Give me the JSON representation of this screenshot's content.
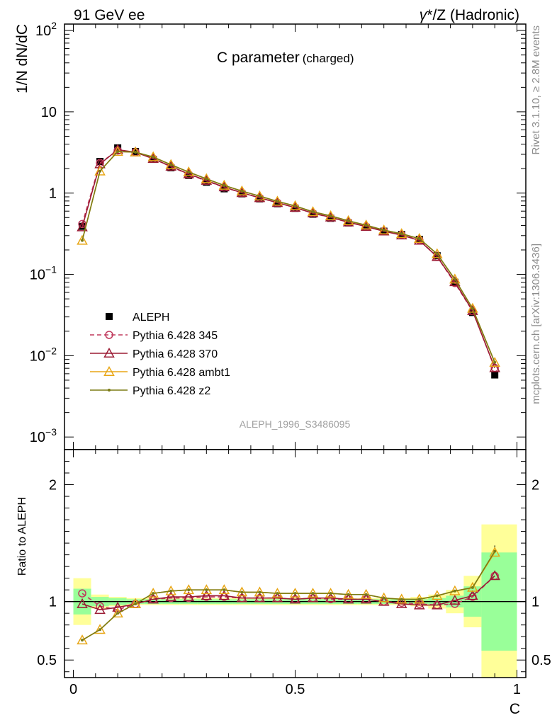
{
  "header": {
    "left": "91 GeV ee",
    "right_gamma": "γ",
    "right_rest": "*/Z (Hadronic)"
  },
  "side_labels": {
    "top": "Rivet 3.1.10, ≥ 2.8M events",
    "bottom": "mcplots.cern.ch [arXiv:1306.3436]"
  },
  "chart_data": {
    "type": "line",
    "title": "C parameter",
    "title_suffix": "(charged)",
    "analysis": "ALEPH_1996_S3486095",
    "xlabel": "C",
    "ylabel": "1/N dN/dC",
    "ratio_ylabel": "Ratio to ALEPH",
    "xlim": [
      -0.02,
      1.02
    ],
    "ylim": [
      0.0007,
      120
    ],
    "yscale": "log",
    "ratio_ylim": [
      0.35,
      2.3
    ],
    "x_ticks": [
      0,
      0.5,
      1
    ],
    "x_tick_labels": [
      "0",
      "0.5",
      "1"
    ],
    "y_tick_labels": [
      {
        "v": 0.001,
        "base": "10",
        "exp": "−3"
      },
      {
        "v": 0.01,
        "base": "10",
        "exp": "−2"
      },
      {
        "v": 0.1,
        "base": "10",
        "exp": "−1"
      },
      {
        "v": 1,
        "base": "1",
        "exp": ""
      },
      {
        "v": 10,
        "base": "10",
        "exp": ""
      },
      {
        "v": 100,
        "base": "10",
        "exp": "2"
      }
    ],
    "ratio_y_ticks": [
      0.5,
      1,
      2
    ],
    "ratio_y_tick_labels": [
      "0.5",
      "1",
      "2"
    ],
    "legend_position": "lower-left",
    "x": [
      0.02,
      0.06,
      0.1,
      0.14,
      0.18,
      0.22,
      0.26,
      0.3,
      0.34,
      0.38,
      0.42,
      0.46,
      0.5,
      0.54,
      0.58,
      0.62,
      0.66,
      0.7,
      0.74,
      0.78,
      0.82,
      0.86,
      0.9,
      0.95
    ],
    "bin_edges": [
      0,
      0.04,
      0.08,
      0.12,
      0.16,
      0.2,
      0.24,
      0.28,
      0.32,
      0.36,
      0.4,
      0.44,
      0.48,
      0.52,
      0.56,
      0.6,
      0.64,
      0.68,
      0.72,
      0.76,
      0.8,
      0.84,
      0.88,
      0.92,
      1.0
    ],
    "data": {
      "name": "ALEPH",
      "color": "#000000",
      "values": [
        0.39,
        2.45,
        3.6,
        3.25,
        2.6,
        2.05,
        1.65,
        1.36,
        1.13,
        0.98,
        0.85,
        0.74,
        0.65,
        0.55,
        0.49,
        0.43,
        0.38,
        0.34,
        0.31,
        0.27,
        0.17,
        0.08,
        0.034,
        0.0058
      ],
      "band_inner": [
        0.11,
        0.04,
        0.03,
        0.02,
        0.02,
        0.02,
        0.02,
        0.02,
        0.02,
        0.02,
        0.02,
        0.02,
        0.02,
        0.02,
        0.02,
        0.02,
        0.02,
        0.02,
        0.02,
        0.02,
        0.03,
        0.05,
        0.13,
        0.42
      ],
      "band_outer": [
        0.2,
        0.06,
        0.04,
        0.03,
        0.03,
        0.03,
        0.03,
        0.03,
        0.03,
        0.03,
        0.03,
        0.03,
        0.03,
        0.03,
        0.03,
        0.03,
        0.03,
        0.03,
        0.03,
        0.04,
        0.06,
        0.1,
        0.22,
        0.66
      ]
    },
    "series": [
      {
        "name": "Pythia 6.428 345",
        "color": "#c0385c",
        "marker": "circle",
        "dashed": true,
        "ratio": [
          1.07,
          0.96,
          0.93,
          0.98,
          1.02,
          1.03,
          1.03,
          1.04,
          1.04,
          1.03,
          1.03,
          1.03,
          1.02,
          1.03,
          1.02,
          1.02,
          1.02,
          1.0,
          0.99,
          0.98,
          0.97,
          0.98,
          1.04,
          1.22
        ]
      },
      {
        "name": "Pythia 6.428 370",
        "color": "#9b1b34",
        "marker": "triangle",
        "dashed": false,
        "ratio": [
          0.98,
          0.93,
          0.95,
          0.98,
          1.02,
          1.04,
          1.04,
          1.05,
          1.05,
          1.03,
          1.03,
          1.03,
          1.02,
          1.03,
          1.03,
          1.02,
          1.02,
          1.0,
          0.98,
          0.97,
          0.97,
          1.01,
          1.05,
          1.22
        ]
      },
      {
        "name": "Pythia 6.428 ambt1",
        "color": "#e8a616",
        "marker": "triangle",
        "dashed": false,
        "ratio": [
          0.67,
          0.76,
          0.9,
          0.98,
          1.07,
          1.09,
          1.1,
          1.1,
          1.1,
          1.08,
          1.08,
          1.07,
          1.07,
          1.07,
          1.07,
          1.06,
          1.06,
          1.03,
          1.02,
          1.02,
          1.05,
          1.09,
          1.12,
          1.42
        ]
      },
      {
        "name": "Pythia 6.428 z2",
        "color": "#7b7b14",
        "marker": "dot",
        "dashed": false,
        "ratio": [
          0.67,
          0.76,
          0.9,
          0.98,
          1.07,
          1.09,
          1.1,
          1.1,
          1.1,
          1.08,
          1.08,
          1.07,
          1.07,
          1.07,
          1.07,
          1.06,
          1.06,
          1.03,
          1.02,
          1.02,
          1.05,
          1.09,
          1.12,
          1.43
        ]
      }
    ]
  }
}
